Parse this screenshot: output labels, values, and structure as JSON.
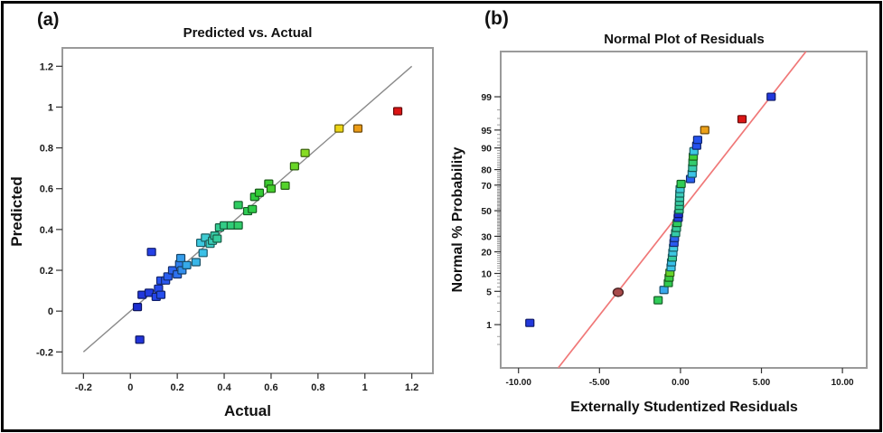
{
  "figure": {
    "corner_labels": [
      "(a)",
      "(b)"
    ]
  },
  "colors": {
    "background": "#ffffff",
    "outer_border": "#000000",
    "frame": "#9a9a9a",
    "tick": "#333333",
    "minor_tick": "#888888",
    "text": "#1a1a1a",
    "identity_line": "#8a8a8a",
    "fit_line": "#f07878"
  },
  "chart_data": [
    {
      "type": "scatter",
      "title": "Predicted vs. Actual",
      "xlabel": "Actual",
      "ylabel": "Predicted",
      "xlim": [
        -0.29,
        1.29
      ],
      "ylim": [
        -0.305,
        1.29
      ],
      "grid": false,
      "legend": "none",
      "marker": "square",
      "xticks": {
        "values": [
          -0.2,
          0,
          0.2,
          0.4,
          0.6,
          0.8,
          1,
          1.2
        ],
        "labels": [
          "-0.2",
          "0",
          "0.2",
          "0.4",
          "0.6",
          "0.8",
          "1",
          "1.2"
        ]
      },
      "yticks": {
        "values": [
          -0.2,
          0,
          0.2,
          0.4,
          0.6,
          0.8,
          1,
          1.2
        ],
        "labels": [
          "-0.2",
          "0",
          "0.2",
          "0.4",
          "0.6",
          "0.8",
          "1",
          "1.2"
        ]
      },
      "identity_line": {
        "x1": -0.2,
        "y1": -0.2,
        "x2": 1.2,
        "y2": 1.2
      },
      "points": [
        {
          "x": 0.03,
          "y": 0.02,
          "color": "#1c2ed0"
        },
        {
          "x": 0.04,
          "y": -0.14,
          "color": "#2134da"
        },
        {
          "x": 0.05,
          "y": 0.08,
          "color": "#2136dc"
        },
        {
          "x": 0.08,
          "y": 0.09,
          "color": "#223ce2"
        },
        {
          "x": 0.09,
          "y": 0.29,
          "color": "#2440e6"
        },
        {
          "x": 0.11,
          "y": 0.07,
          "color": "#2444ea"
        },
        {
          "x": 0.12,
          "y": 0.11,
          "color": "#264aec"
        },
        {
          "x": 0.13,
          "y": 0.08,
          "color": "#264eee"
        },
        {
          "x": 0.13,
          "y": 0.15,
          "color": "#2852f0"
        },
        {
          "x": 0.15,
          "y": 0.15,
          "color": "#2a58f0"
        },
        {
          "x": 0.16,
          "y": 0.17,
          "color": "#2a5ef0"
        },
        {
          "x": 0.18,
          "y": 0.2,
          "color": "#2c66f0"
        },
        {
          "x": 0.2,
          "y": 0.18,
          "color": "#2e72f0"
        },
        {
          "x": 0.21,
          "y": 0.23,
          "color": "#3080ee"
        },
        {
          "x": 0.22,
          "y": 0.2,
          "color": "#328eec"
        },
        {
          "x": 0.215,
          "y": 0.26,
          "color": "#349cea"
        },
        {
          "x": 0.24,
          "y": 0.225,
          "color": "#36aae8"
        },
        {
          "x": 0.28,
          "y": 0.24,
          "color": "#38b6e8"
        },
        {
          "x": 0.31,
          "y": 0.285,
          "color": "#3ac0e6"
        },
        {
          "x": 0.3,
          "y": 0.335,
          "color": "#3cc8e0"
        },
        {
          "x": 0.32,
          "y": 0.36,
          "color": "#3eccd2"
        },
        {
          "x": 0.34,
          "y": 0.33,
          "color": "#3cccc4"
        },
        {
          "x": 0.35,
          "y": 0.345,
          "color": "#3accb6"
        },
        {
          "x": 0.36,
          "y": 0.37,
          "color": "#38cca8"
        },
        {
          "x": 0.37,
          "y": 0.355,
          "color": "#36cc9c"
        },
        {
          "x": 0.38,
          "y": 0.41,
          "color": "#34cc92"
        },
        {
          "x": 0.4,
          "y": 0.42,
          "color": "#32cc86"
        },
        {
          "x": 0.43,
          "y": 0.42,
          "color": "#30cc78"
        },
        {
          "x": 0.46,
          "y": 0.42,
          "color": "#30cc6a"
        },
        {
          "x": 0.46,
          "y": 0.52,
          "color": "#2ecc60"
        },
        {
          "x": 0.5,
          "y": 0.49,
          "color": "#2ecc54"
        },
        {
          "x": 0.52,
          "y": 0.5,
          "color": "#2ecc48"
        },
        {
          "x": 0.53,
          "y": 0.56,
          "color": "#30cc3e"
        },
        {
          "x": 0.55,
          "y": 0.58,
          "color": "#34cc36"
        },
        {
          "x": 0.59,
          "y": 0.625,
          "color": "#3ccc30"
        },
        {
          "x": 0.6,
          "y": 0.6,
          "color": "#44ce2c"
        },
        {
          "x": 0.66,
          "y": 0.615,
          "color": "#54d22a"
        },
        {
          "x": 0.7,
          "y": 0.71,
          "color": "#68d626"
        },
        {
          "x": 0.745,
          "y": 0.775,
          "color": "#86dc22"
        },
        {
          "x": 0.89,
          "y": 0.895,
          "color": "#ecd414"
        },
        {
          "x": 0.97,
          "y": 0.895,
          "color": "#ec9c16"
        },
        {
          "x": 1.14,
          "y": 0.98,
          "color": "#dc1414"
        }
      ]
    },
    {
      "type": "scatter",
      "title": "Normal Plot of Residuals",
      "xlabel": "Externally Studentized Residuals",
      "ylabel": "Normal % Probability",
      "yscale": "normal_probability",
      "xlim": [
        -11.1,
        11.5
      ],
      "zlim": [
        -3.21,
        3.25
      ],
      "grid": false,
      "legend": "none",
      "marker": "square",
      "xticks": {
        "values": [
          -10,
          -5,
          0,
          5,
          10
        ],
        "labels": [
          "-10.00",
          "-5.00",
          "0.00",
          "5.00",
          "10.00"
        ]
      },
      "yticks": {
        "values": [
          1,
          5,
          10,
          20,
          30,
          50,
          70,
          80,
          90,
          95,
          99
        ],
        "labels": [
          "1",
          "5",
          "10",
          "20",
          "30",
          "50",
          "70",
          "80",
          "90",
          "95",
          "99"
        ]
      },
      "fit_line": {
        "x1": -7.55,
        "z1": -3.21,
        "x2": 7.75,
        "z2": 3.25
      },
      "points": [
        {
          "x": -9.3,
          "p": 1.1,
          "color": "#2238dc"
        },
        {
          "x": -3.85,
          "p": 4.8,
          "color": "#a84a4a",
          "shape": "circle"
        },
        {
          "x": -1.38,
          "p": 3.4,
          "color": "#30cc58"
        },
        {
          "x": -1.02,
          "p": 5.3,
          "color": "#38a8ec"
        },
        {
          "x": -0.75,
          "p": 7.0,
          "color": "#30cc50"
        },
        {
          "x": -0.7,
          "p": 8.6,
          "color": "#38cc44"
        },
        {
          "x": -0.65,
          "p": 10.3,
          "color": "#66d428"
        },
        {
          "x": -0.58,
          "p": 12.4,
          "color": "#3cc4e6"
        },
        {
          "x": -0.55,
          "p": 14.6,
          "color": "#38c0ea"
        },
        {
          "x": -0.5,
          "p": 16.9,
          "color": "#34cc9e"
        },
        {
          "x": -0.47,
          "p": 19.6,
          "color": "#3cc8e2"
        },
        {
          "x": -0.43,
          "p": 22.5,
          "color": "#40cce0"
        },
        {
          "x": -0.4,
          "p": 25.6,
          "color": "#2a5af0"
        },
        {
          "x": -0.37,
          "p": 28.8,
          "color": "#2c64f0"
        },
        {
          "x": -0.3,
          "p": 32.4,
          "color": "#34cca8"
        },
        {
          "x": -0.25,
          "p": 36.2,
          "color": "#36cc9a"
        },
        {
          "x": -0.2,
          "p": 40.1,
          "color": "#30cc5e"
        },
        {
          "x": -0.14,
          "p": 44.2,
          "color": "#2242e2"
        },
        {
          "x": -0.12,
          "p": 47.4,
          "color": "#1c30d0"
        },
        {
          "x": -0.08,
          "p": 50.8,
          "color": "#32cc8c"
        },
        {
          "x": -0.07,
          "p": 54.0,
          "color": "#34cc96"
        },
        {
          "x": -0.06,
          "p": 57.2,
          "color": "#36cca2"
        },
        {
          "x": -0.05,
          "p": 60.5,
          "color": "#38ccae"
        },
        {
          "x": -0.04,
          "p": 63.8,
          "color": "#3accba"
        },
        {
          "x": -0.02,
          "p": 67.2,
          "color": "#3ec8d6"
        },
        {
          "x": 0.04,
          "p": 70.8,
          "color": "#30cc54"
        },
        {
          "x": 0.62,
          "p": 74.2,
          "color": "#2a60f0"
        },
        {
          "x": 0.72,
          "p": 77.6,
          "color": "#3cc4e6"
        },
        {
          "x": 0.75,
          "p": 81.0,
          "color": "#38ccb0"
        },
        {
          "x": 0.77,
          "p": 84.0,
          "color": "#32cc6e"
        },
        {
          "x": 0.79,
          "p": 86.6,
          "color": "#3ed038"
        },
        {
          "x": 0.83,
          "p": 88.8,
          "color": "#3cc8e2"
        },
        {
          "x": 1.0,
          "p": 90.8,
          "color": "#2452ee"
        },
        {
          "x": 1.06,
          "p": 92.6,
          "color": "#2452ee"
        },
        {
          "x": 1.5,
          "p": 95.0,
          "color": "#eca018"
        },
        {
          "x": 3.8,
          "p": 96.9,
          "color": "#dc1616"
        },
        {
          "x": 5.6,
          "p": 99.0,
          "color": "#2238dc"
        }
      ]
    }
  ]
}
